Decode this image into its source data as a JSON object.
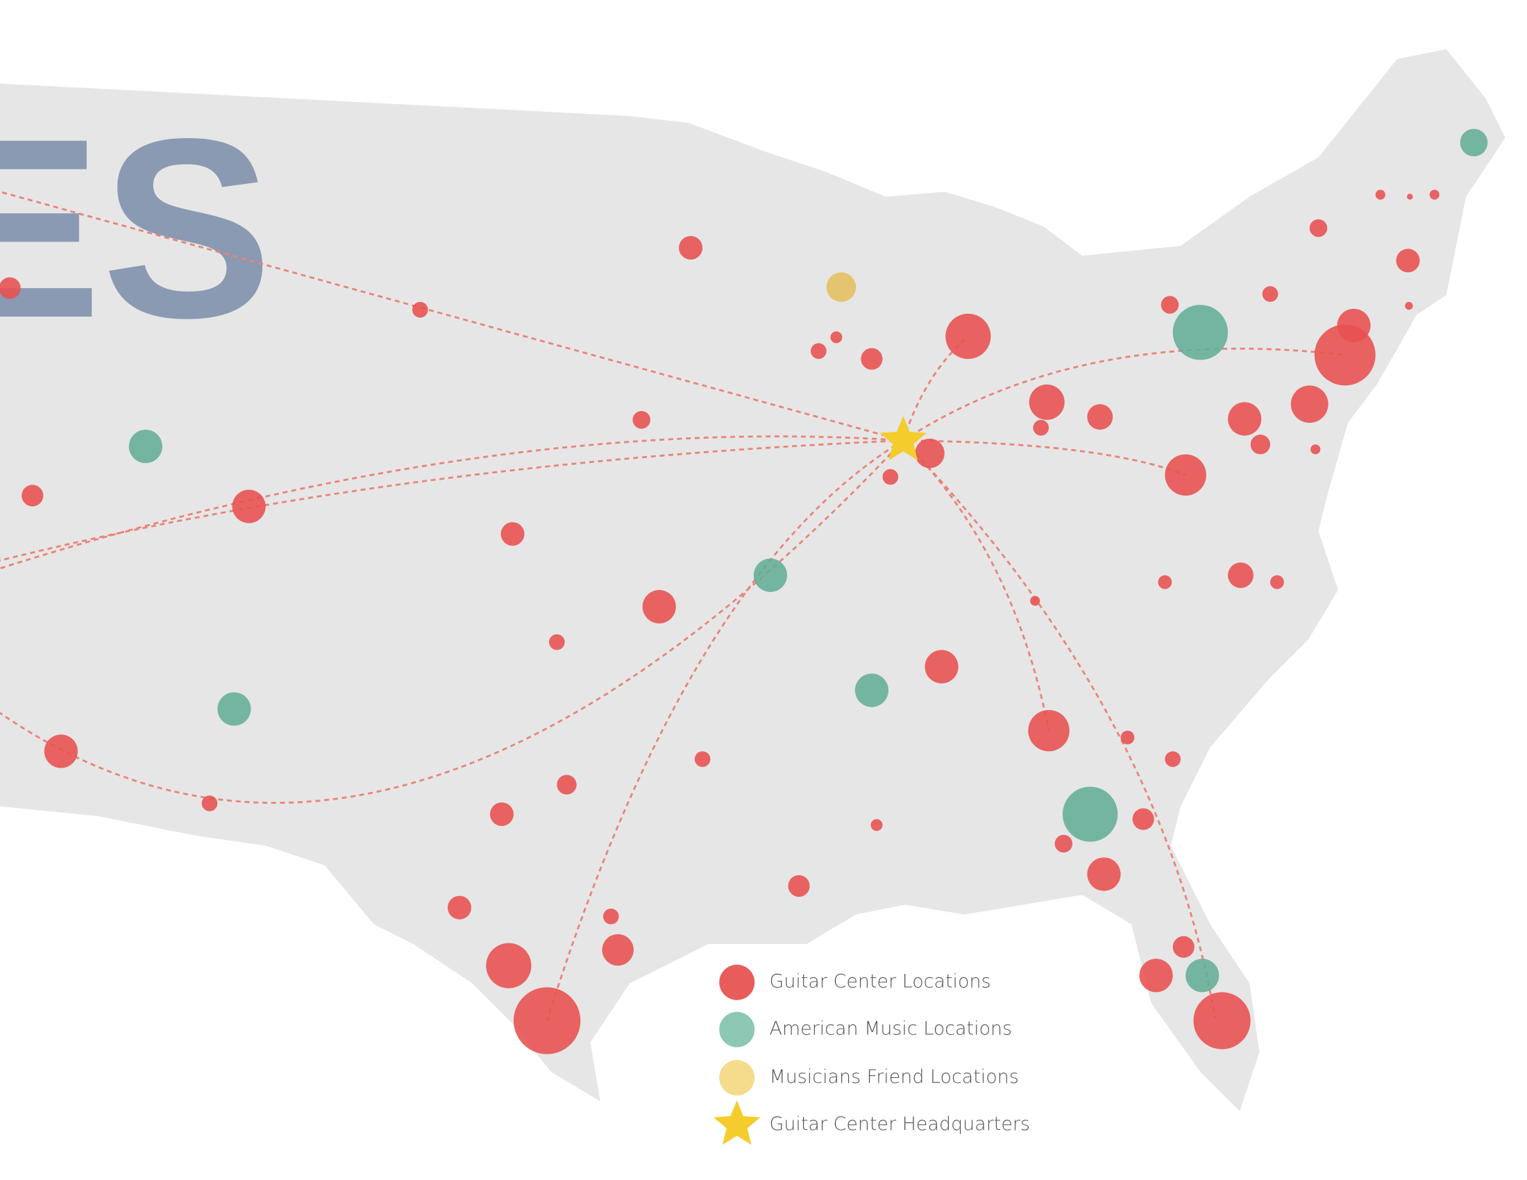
{
  "title_fragment": "ES",
  "legend": [
    {
      "label": "Guitar Center Locations"
    },
    {
      "label": "American Music Locations"
    },
    {
      "label": "Musicians Friend Locations"
    },
    {
      "label": "Guitar Center Headquarters"
    }
  ]
}
